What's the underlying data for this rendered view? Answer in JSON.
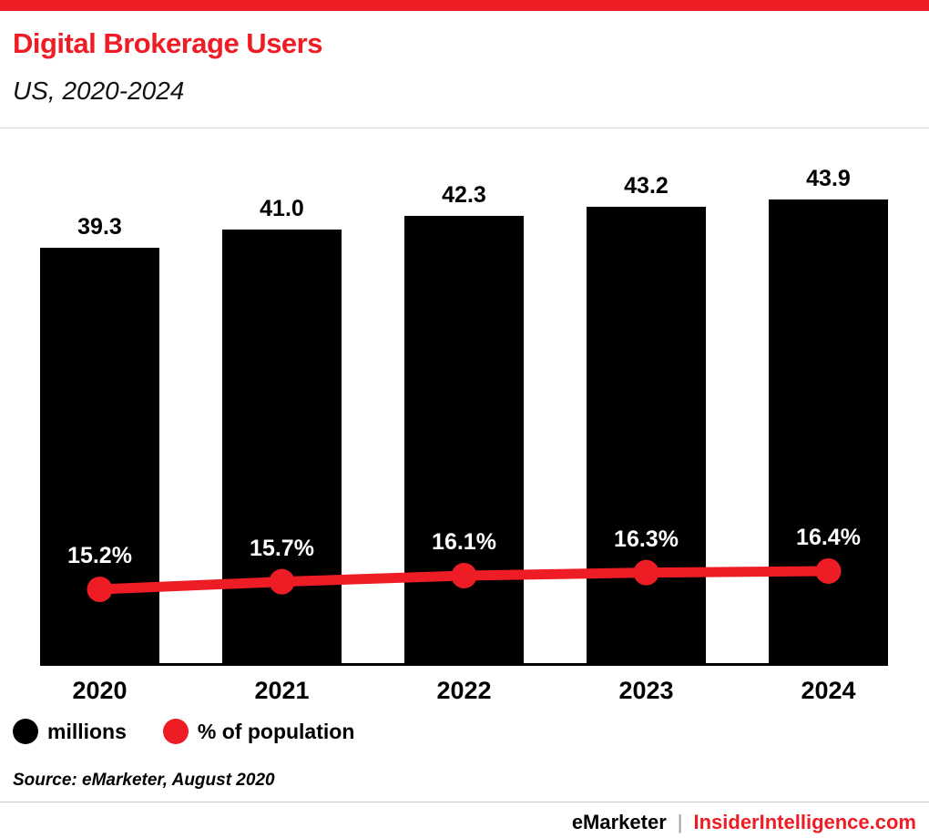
{
  "header": {
    "title": "Digital Brokerage Users",
    "subtitle": "US, 2020-2024"
  },
  "chart_data": {
    "type": "bar",
    "title": "Digital Brokerage Users",
    "subtitle": "US, 2020-2024",
    "categories": [
      "2020",
      "2021",
      "2022",
      "2023",
      "2024"
    ],
    "series": [
      {
        "name": "millions",
        "type": "bar",
        "values": [
          39.3,
          41.0,
          42.3,
          43.2,
          43.9
        ],
        "labels": [
          "39.3",
          "41.0",
          "42.3",
          "43.2",
          "43.9"
        ],
        "color": "#000000"
      },
      {
        "name": "% of population",
        "type": "line",
        "values": [
          15.2,
          15.7,
          16.1,
          16.3,
          16.4
        ],
        "labels": [
          "15.2%",
          "15.7%",
          "16.1%",
          "16.3%",
          "16.4%"
        ],
        "color": "#ee1c25"
      }
    ],
    "xlabel": "",
    "ylabel": "",
    "ylim_bar": [
      0,
      50
    ],
    "ylim_line": [
      10,
      20
    ],
    "grid": false,
    "legend_position": "bottom-left",
    "value_labels_shown": true
  },
  "legend": {
    "millions": "millions",
    "population": "% of population"
  },
  "source": "Source: eMarketer, August 2020",
  "footer": {
    "brand_left": "eMarketer",
    "separator": "|",
    "brand_right": "InsiderIntelligence.com"
  },
  "colors": {
    "accent": "#ee1c25",
    "bar": "#000000",
    "background": "#ffffff"
  }
}
